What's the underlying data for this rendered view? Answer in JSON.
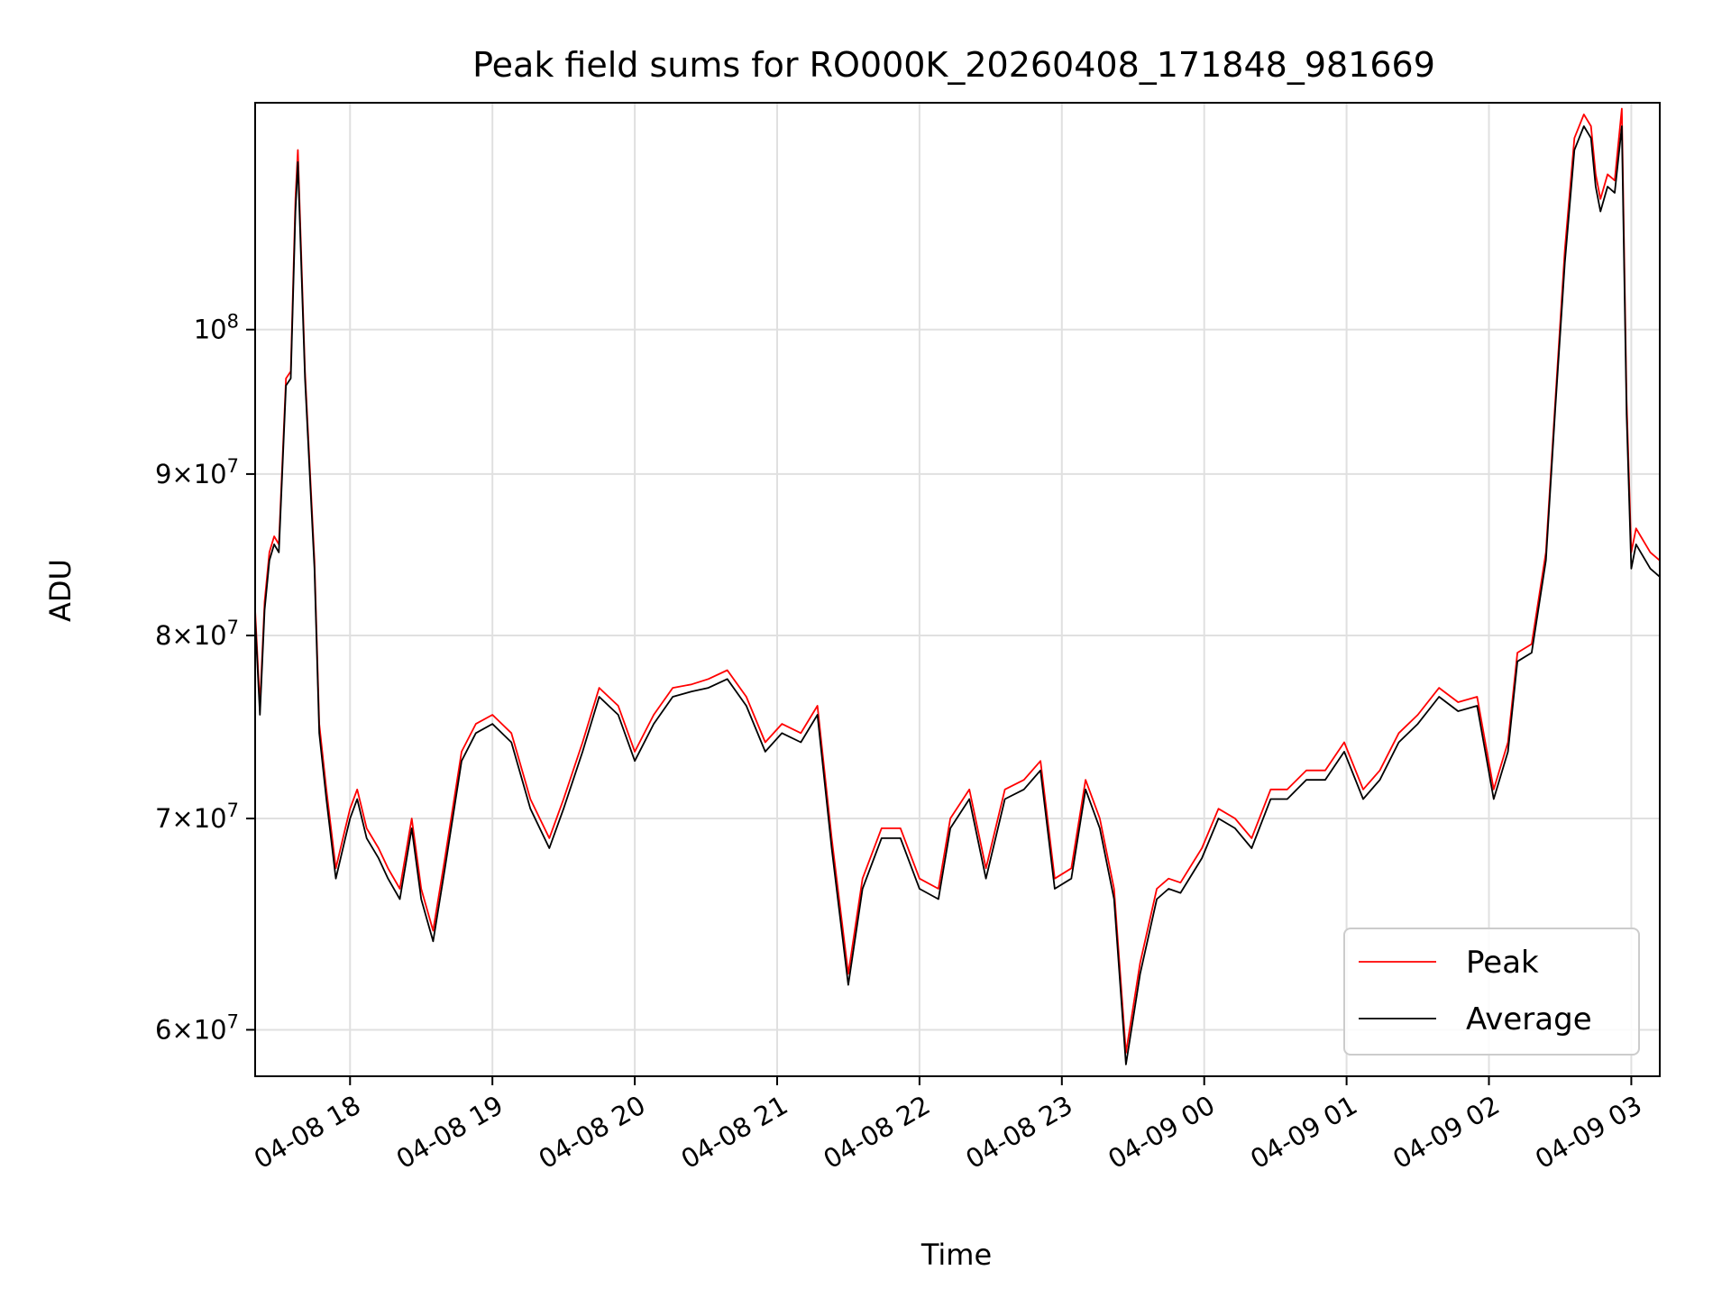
{
  "chart_data": {
    "type": "line",
    "title": "Peak field sums for RO000K_20260408_171848_981669",
    "xlabel": "Time",
    "ylabel": "ADU",
    "yscale": "log",
    "ylim": [
      58000000,
      118000000
    ],
    "xlim": [
      "04-08 17:20",
      "04-09 03:12"
    ],
    "grid": true,
    "legend_position": "lower-right",
    "x_ticks": [
      "04-08 18",
      "04-08 19",
      "04-08 20",
      "04-08 21",
      "04-08 22",
      "04-08 23",
      "04-09 00",
      "04-09 01",
      "04-09 02",
      "04-09 03"
    ],
    "y_ticks": [
      {
        "value": 60000000,
        "mantissa": "6",
        "exponent": "7"
      },
      {
        "value": 70000000,
        "mantissa": "7",
        "exponent": "7"
      },
      {
        "value": 80000000,
        "mantissa": "8",
        "exponent": "7"
      },
      {
        "value": 90000000,
        "mantissa": "9",
        "exponent": "7"
      },
      {
        "value": 100000000,
        "mantissa": "",
        "exponent": "8"
      }
    ],
    "x": [
      "04-08 17:20",
      "04-08 17:22",
      "04-08 17:24",
      "04-08 17:26",
      "04-08 17:28",
      "04-08 17:30",
      "04-08 17:33",
      "04-08 17:35",
      "04-08 17:37",
      "04-08 17:38",
      "04-08 17:41",
      "04-08 17:45",
      "04-08 17:47",
      "04-08 17:50",
      "04-08 17:54",
      "04-08 17:58",
      "04-08 18:00",
      "04-08 18:03",
      "04-08 18:07",
      "04-08 18:12",
      "04-08 18:16",
      "04-08 18:21",
      "04-08 18:26",
      "04-08 18:30",
      "04-08 18:35",
      "04-08 18:40",
      "04-08 18:47",
      "04-08 18:53",
      "04-08 19:00",
      "04-08 19:08",
      "04-08 19:16",
      "04-08 19:24",
      "04-08 19:30",
      "04-08 19:38",
      "04-08 19:45",
      "04-08 19:53",
      "04-08 20:00",
      "04-08 20:08",
      "04-08 20:16",
      "04-08 20:24",
      "04-08 20:31",
      "04-08 20:39",
      "04-08 20:47",
      "04-08 20:55",
      "04-08 21:02",
      "04-08 21:10",
      "04-08 21:17",
      "04-08 21:23",
      "04-08 21:30",
      "04-08 21:36",
      "04-08 21:44",
      "04-08 21:52",
      "04-08 22:00",
      "04-08 22:08",
      "04-08 22:13",
      "04-08 22:21",
      "04-08 22:28",
      "04-08 22:36",
      "04-08 22:44",
      "04-08 22:51",
      "04-08 22:57",
      "04-08 23:04",
      "04-08 23:10",
      "04-08 23:16",
      "04-08 23:22",
      "04-08 23:27",
      "04-08 23:33",
      "04-08 23:40",
      "04-08 23:45",
      "04-08 23:50",
      "04-08 23:59",
      "04-09 00:06",
      "04-09 00:13",
      "04-09 00:20",
      "04-09 00:28",
      "04-09 00:35",
      "04-09 00:43",
      "04-09 00:51",
      "04-09 00:59",
      "04-09 01:07",
      "04-09 01:14",
      "04-09 01:22",
      "04-09 01:30",
      "04-09 01:39",
      "04-09 01:47",
      "04-09 01:55",
      "04-09 02:02",
      "04-09 02:08",
      "04-09 02:12",
      "04-09 02:18",
      "04-09 02:24",
      "04-09 02:28",
      "04-09 02:32",
      "04-09 02:36",
      "04-09 02:40",
      "04-09 02:43",
      "04-09 02:45",
      "04-09 02:47",
      "04-09 02:50",
      "04-09 02:53",
      "04-09 02:56",
      "04-09 02:58",
      "04-09 03:00",
      "04-09 03:02",
      "04-09 03:04",
      "04-09 03:06",
      "04-09 03:08",
      "04-09 03:12"
    ],
    "series": [
      {
        "name": "Peak",
        "color": "#ff0000",
        "values": [
          81500000,
          76000000,
          82000000,
          85000000,
          86000000,
          85500000,
          96500000,
          97000000,
          110000000,
          114000000,
          97000000,
          84500000,
          75000000,
          71500000,
          67500000,
          69500000,
          70500000,
          71500000,
          69500000,
          68500000,
          67500000,
          66500000,
          70000000,
          66500000,
          64500000,
          68000000,
          73500000,
          75000000,
          75500000,
          74500000,
          71000000,
          69000000,
          71000000,
          74000000,
          77000000,
          76000000,
          73500000,
          75500000,
          77000000,
          77200000,
          77500000,
          78000000,
          76500000,
          74000000,
          75000000,
          74500000,
          76000000,
          69000000,
          62500000,
          67000000,
          69500000,
          69500000,
          67000000,
          66500000,
          70000000,
          71500000,
          67500000,
          71500000,
          72000000,
          73000000,
          67000000,
          67500000,
          72000000,
          70000000,
          66500000,
          59000000,
          63000000,
          66500000,
          67000000,
          66800000,
          68500000,
          70500000,
          70000000,
          69000000,
          71500000,
          71500000,
          72500000,
          72500000,
          74000000,
          71500000,
          72500000,
          74500000,
          75500000,
          77000000,
          76200000,
          76500000,
          71500000,
          74000000,
          79000000,
          79500000,
          85000000,
          95000000,
          106000000,
          115000000,
          117000000,
          116000000,
          112000000,
          110000000,
          112000000,
          111500000,
          117500000,
          95000000,
          85000000,
          86500000,
          86000000,
          85500000,
          85000000,
          84500000
        ]
      },
      {
        "name": "Average",
        "color": "#000000",
        "values": [
          81000000,
          75500000,
          81500000,
          84500000,
          85500000,
          85000000,
          96000000,
          96500000,
          109000000,
          113000000,
          96500000,
          84000000,
          74500000,
          71000000,
          67000000,
          69000000,
          70000000,
          71000000,
          69000000,
          68000000,
          67000000,
          66000000,
          69500000,
          66000000,
          64000000,
          67500000,
          73000000,
          74500000,
          75000000,
          74000000,
          70500000,
          68500000,
          70500000,
          73500000,
          76500000,
          75500000,
          73000000,
          75000000,
          76500000,
          76800000,
          77000000,
          77500000,
          76000000,
          73500000,
          74500000,
          74000000,
          75500000,
          68500000,
          62000000,
          66500000,
          69000000,
          69000000,
          66500000,
          66000000,
          69500000,
          71000000,
          67000000,
          71000000,
          71500000,
          72500000,
          66500000,
          67000000,
          71500000,
          69500000,
          66000000,
          58500000,
          62500000,
          66000000,
          66500000,
          66300000,
          68000000,
          70000000,
          69500000,
          68500000,
          71000000,
          71000000,
          72000000,
          72000000,
          73500000,
          71000000,
          72000000,
          74000000,
          75000000,
          76500000,
          75700000,
          76000000,
          71000000,
          73500000,
          78500000,
          79000000,
          84500000,
          94500000,
          105000000,
          114000000,
          116000000,
          115000000,
          111000000,
          109000000,
          111000000,
          110500000,
          116000000,
          94000000,
          84000000,
          85500000,
          85000000,
          84500000,
          84000000,
          83500000
        ]
      }
    ]
  }
}
